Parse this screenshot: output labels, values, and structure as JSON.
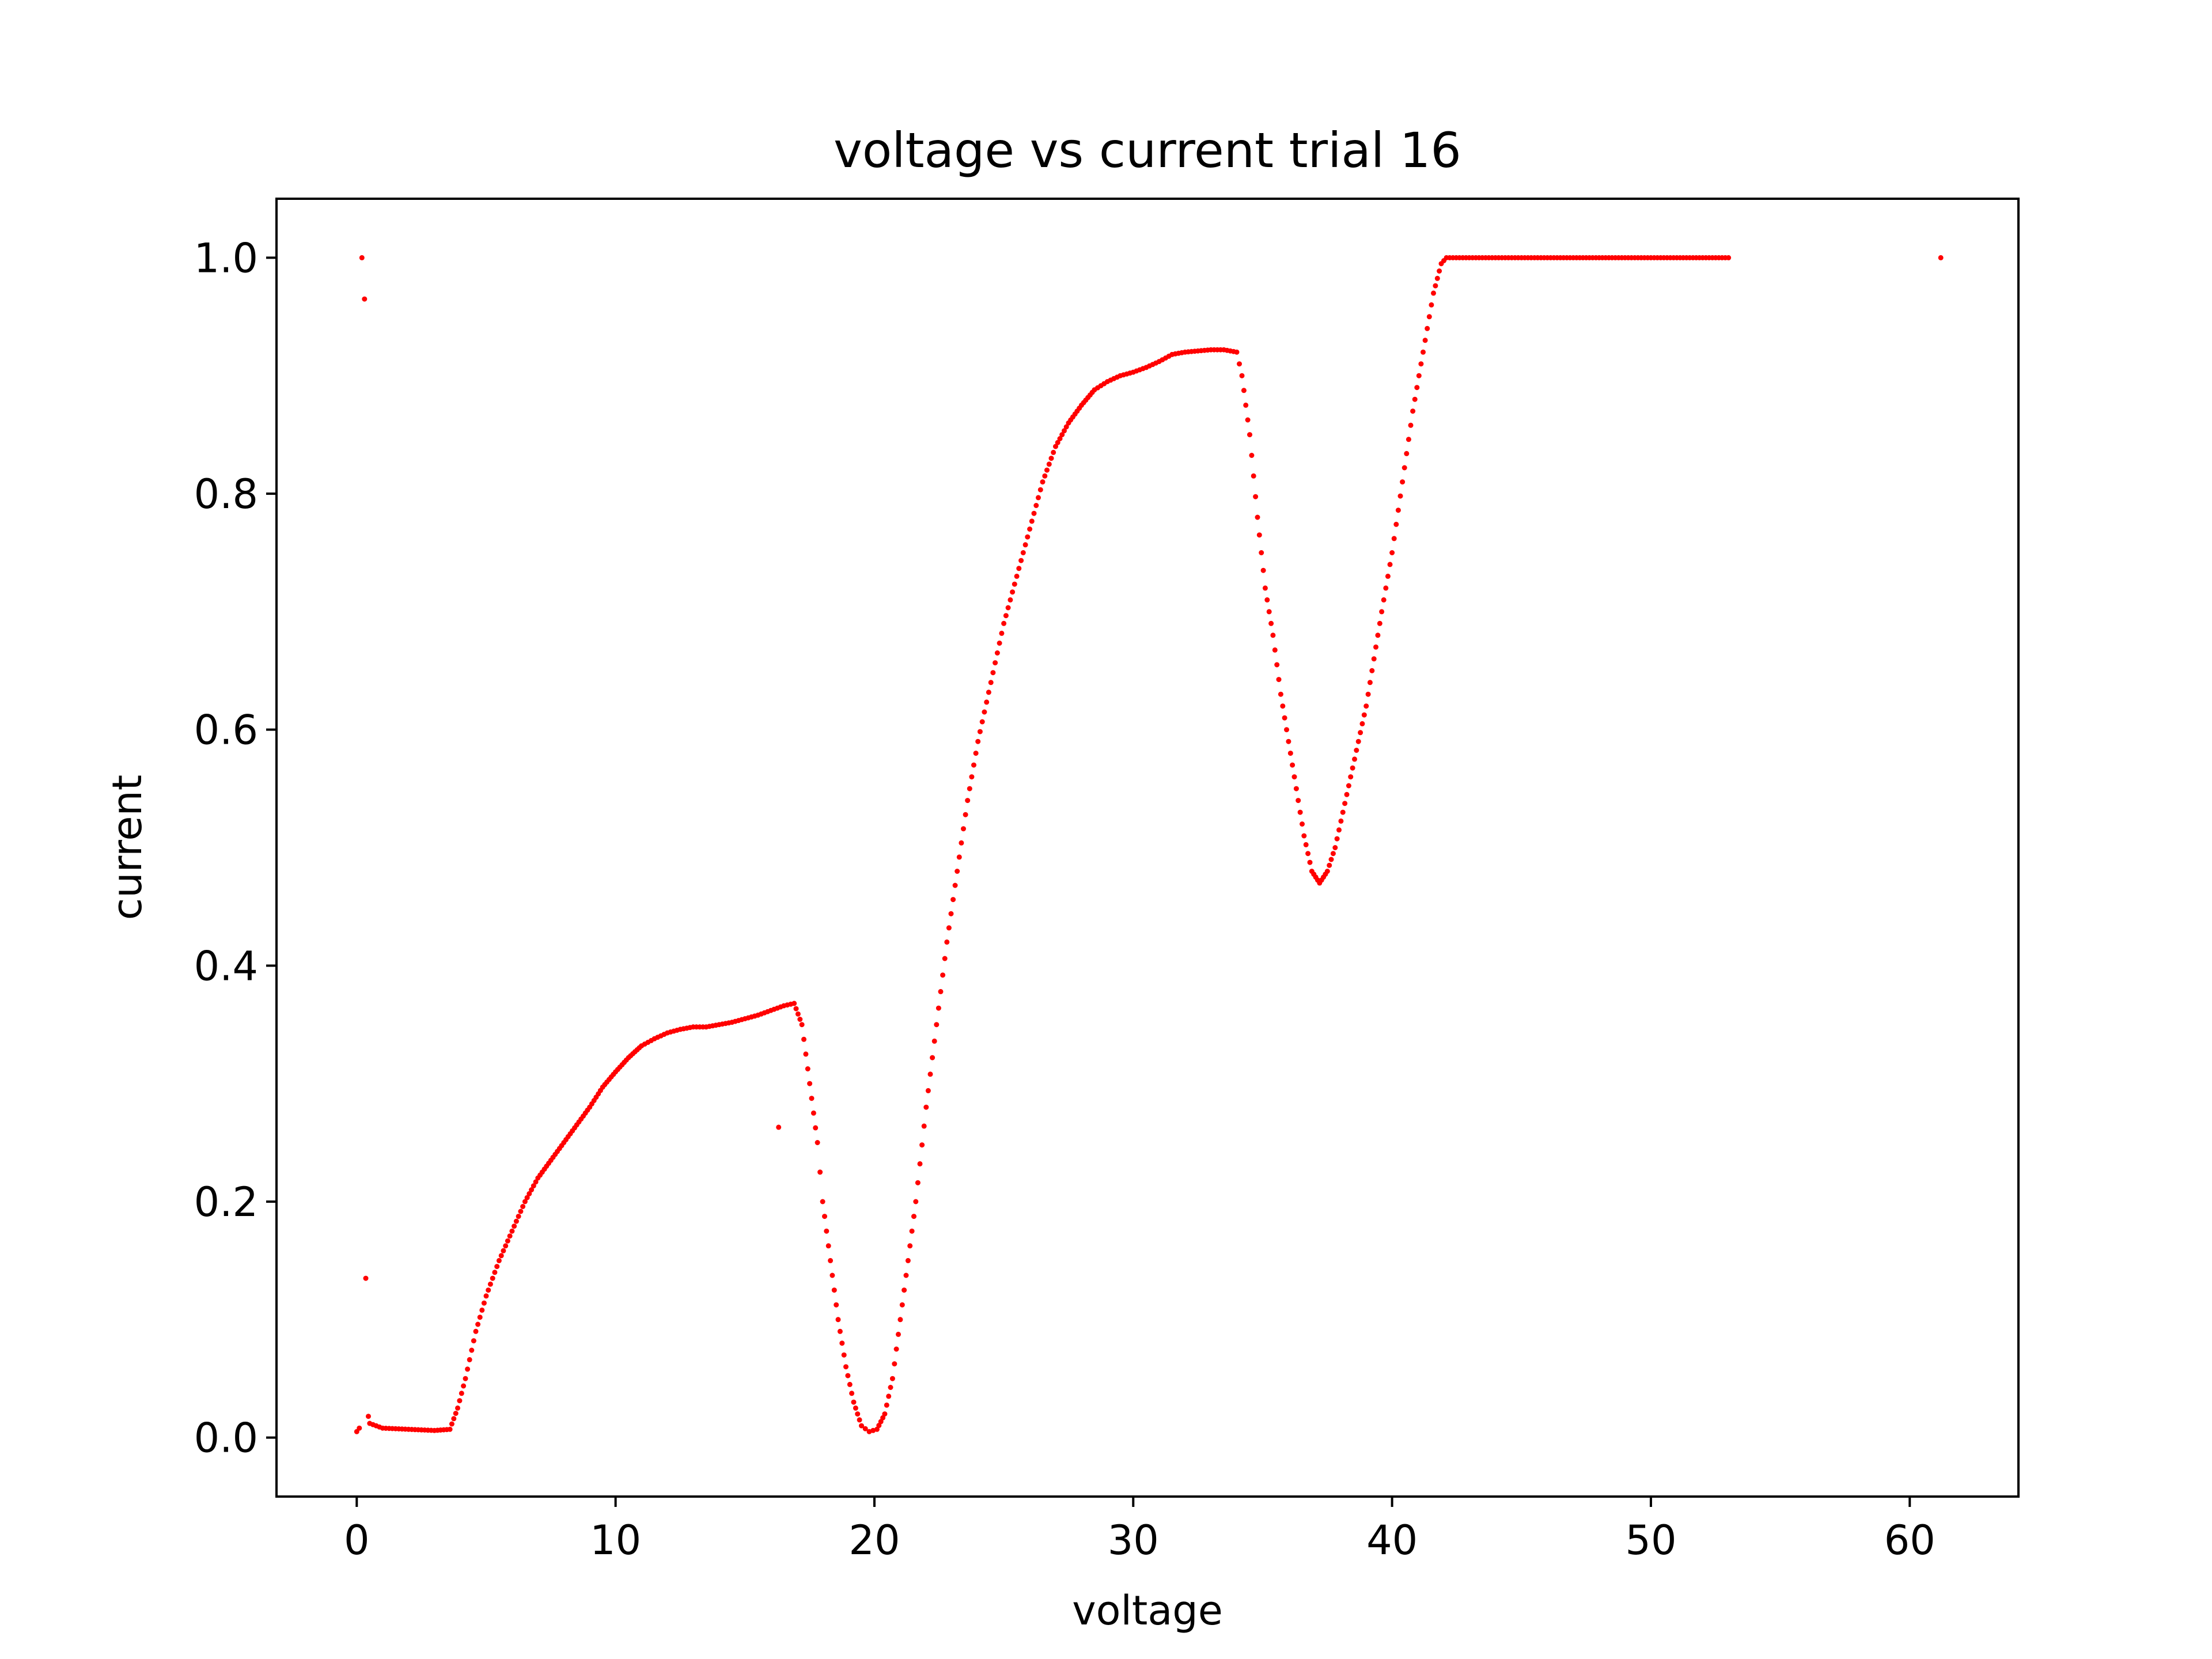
{
  "chart_data": {
    "type": "scatter",
    "title": "voltage vs current trial 16",
    "xlabel": "voltage",
    "ylabel": "current",
    "xlim": [
      -3.1,
      64.2
    ],
    "ylim": [
      -0.05,
      1.05
    ],
    "xticks": [
      0,
      10,
      20,
      30,
      40,
      50,
      60
    ],
    "yticks": [
      0.0,
      0.2,
      0.4,
      0.6,
      0.8,
      1.0
    ],
    "xtick_labels": [
      "0",
      "10",
      "20",
      "30",
      "40",
      "50",
      "60"
    ],
    "ytick_labels": [
      "0.0",
      "0.2",
      "0.4",
      "0.6",
      "0.8",
      "1.0"
    ],
    "grid": false,
    "marker_color": "#ff0000",
    "series": [
      {
        "outliers": [
          {
            "x": 0.0,
            "y": 0.005
          },
          {
            "x": 0.1,
            "y": 0.008
          },
          {
            "x": 0.2,
            "y": 1.0
          },
          {
            "x": 0.3,
            "y": 0.965
          },
          {
            "x": 0.35,
            "y": 0.135
          },
          {
            "x": 0.45,
            "y": 0.018
          },
          {
            "x": 16.3,
            "y": 0.263
          },
          {
            "x": 61.2,
            "y": 1.0
          }
        ],
        "curve": [
          [
            0.5,
            0.012
          ],
          [
            1.0,
            0.008
          ],
          [
            2.0,
            0.007
          ],
          [
            3.0,
            0.006
          ],
          [
            3.6,
            0.007
          ],
          [
            3.9,
            0.025
          ],
          [
            4.2,
            0.05
          ],
          [
            4.6,
            0.09
          ],
          [
            5.0,
            0.12
          ],
          [
            5.5,
            0.15
          ],
          [
            6.0,
            0.175
          ],
          [
            6.5,
            0.2
          ],
          [
            7.0,
            0.22
          ],
          [
            7.5,
            0.235
          ],
          [
            8.0,
            0.25
          ],
          [
            8.5,
            0.265
          ],
          [
            9.0,
            0.28
          ],
          [
            9.5,
            0.297
          ],
          [
            10.0,
            0.31
          ],
          [
            10.5,
            0.322
          ],
          [
            11.0,
            0.332
          ],
          [
            11.5,
            0.338
          ],
          [
            12.0,
            0.343
          ],
          [
            12.5,
            0.346
          ],
          [
            13.0,
            0.348
          ],
          [
            13.5,
            0.348
          ],
          [
            14.0,
            0.35
          ],
          [
            14.5,
            0.352
          ],
          [
            15.0,
            0.355
          ],
          [
            15.5,
            0.358
          ],
          [
            16.0,
            0.362
          ],
          [
            16.5,
            0.366
          ],
          [
            16.9,
            0.368
          ],
          [
            17.2,
            0.35
          ],
          [
            17.5,
            0.3
          ],
          [
            17.8,
            0.25
          ],
          [
            18.0,
            0.2
          ],
          [
            18.3,
            0.15
          ],
          [
            18.6,
            0.1
          ],
          [
            18.9,
            0.06
          ],
          [
            19.2,
            0.03
          ],
          [
            19.5,
            0.01
          ],
          [
            19.8,
            0.005
          ],
          [
            20.1,
            0.007
          ],
          [
            20.4,
            0.02
          ],
          [
            20.7,
            0.05
          ],
          [
            21.0,
            0.1
          ],
          [
            21.3,
            0.15
          ],
          [
            21.6,
            0.2
          ],
          [
            22.0,
            0.28
          ],
          [
            22.4,
            0.35
          ],
          [
            22.8,
            0.42
          ],
          [
            23.2,
            0.48
          ],
          [
            23.6,
            0.54
          ],
          [
            24.0,
            0.59
          ],
          [
            24.5,
            0.64
          ],
          [
            25.0,
            0.69
          ],
          [
            25.5,
            0.73
          ],
          [
            26.0,
            0.77
          ],
          [
            26.5,
            0.81
          ],
          [
            27.0,
            0.84
          ],
          [
            27.5,
            0.86
          ],
          [
            28.0,
            0.875
          ],
          [
            28.5,
            0.888
          ],
          [
            29.0,
            0.895
          ],
          [
            29.5,
            0.9
          ],
          [
            30.0,
            0.903
          ],
          [
            30.5,
            0.907
          ],
          [
            31.0,
            0.912
          ],
          [
            31.5,
            0.918
          ],
          [
            32.0,
            0.92
          ],
          [
            32.5,
            0.921
          ],
          [
            33.0,
            0.922
          ],
          [
            33.5,
            0.922
          ],
          [
            34.0,
            0.92
          ],
          [
            34.2,
            0.9
          ],
          [
            34.5,
            0.85
          ],
          [
            34.8,
            0.78
          ],
          [
            35.1,
            0.72
          ],
          [
            35.4,
            0.68
          ],
          [
            35.7,
            0.63
          ],
          [
            36.0,
            0.59
          ],
          [
            36.3,
            0.55
          ],
          [
            36.6,
            0.51
          ],
          [
            36.9,
            0.48
          ],
          [
            37.2,
            0.47
          ],
          [
            37.5,
            0.48
          ],
          [
            37.8,
            0.5
          ],
          [
            38.1,
            0.53
          ],
          [
            38.4,
            0.56
          ],
          [
            38.7,
            0.59
          ],
          [
            39.0,
            0.62
          ],
          [
            39.3,
            0.66
          ],
          [
            39.6,
            0.7
          ],
          [
            40.0,
            0.75
          ],
          [
            40.4,
            0.81
          ],
          [
            40.8,
            0.87
          ],
          [
            41.2,
            0.92
          ],
          [
            41.6,
            0.97
          ],
          [
            41.9,
            0.995
          ],
          [
            42.1,
            1.0
          ],
          [
            45.0,
            1.0
          ],
          [
            48.0,
            1.0
          ],
          [
            51.0,
            1.0
          ],
          [
            53.0,
            1.0
          ]
        ]
      }
    ]
  }
}
